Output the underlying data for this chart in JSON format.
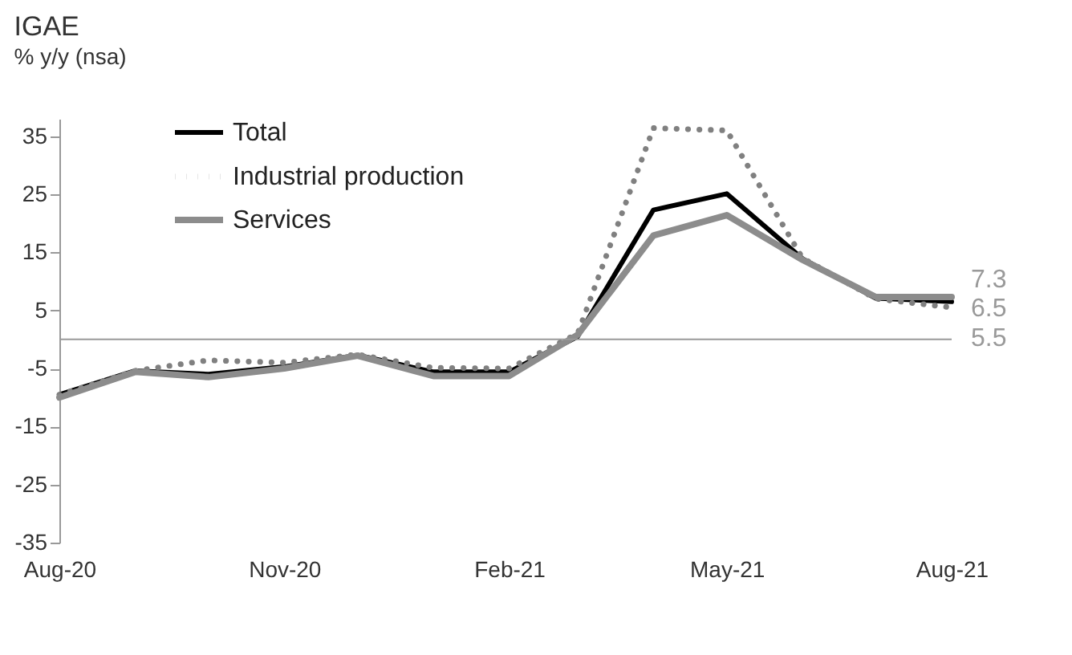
{
  "chart_data": {
    "type": "line",
    "title": "IGAE",
    "subtitle": "% y/y (nsa)",
    "x": [
      "2020-08",
      "2020-09",
      "2020-10",
      "2020-11",
      "2020-12",
      "2021-01",
      "2021-02",
      "2021-03",
      "2021-04",
      "2021-05",
      "2021-06",
      "2021-07",
      "2021-08"
    ],
    "series": [
      {
        "name": "Total",
        "color": "#000000",
        "line_style": "solid",
        "values": [
          -9.5,
          -5.4,
          -6.0,
          -4.7,
          -2.7,
          -5.6,
          -5.6,
          0.5,
          22.3,
          25.1,
          13.9,
          7.1,
          6.5
        ]
      },
      {
        "name": "Industrial production",
        "color": "#808080",
        "line_style": "dotted",
        "values": [
          -9.5,
          -5.4,
          -3.6,
          -4.0,
          -2.6,
          -4.9,
          -5.0,
          1.0,
          36.4,
          36.0,
          14.0,
          7.0,
          5.5
        ]
      },
      {
        "name": "Services",
        "color": "#8c8c8c",
        "line_style": "solid",
        "values": [
          -10.0,
          -5.6,
          -6.5,
          -5.0,
          -2.8,
          -6.3,
          -6.3,
          0.8,
          17.9,
          21.4,
          13.7,
          7.3,
          7.3
        ]
      }
    ],
    "ylim": [
      -35,
      38
    ],
    "yticks": [
      -35,
      -25,
      -15,
      -5,
      5,
      15,
      25,
      35
    ],
    "xlim": [
      "2020-08",
      "2021-08"
    ],
    "xticks": [
      {
        "value": "2020-08",
        "label": "Aug-20"
      },
      {
        "value": "2020-11",
        "label": "Nov-20"
      },
      {
        "value": "2021-02",
        "label": "Feb-21"
      },
      {
        "value": "2021-05",
        "label": "May-21"
      },
      {
        "value": "2021-08",
        "label": "Aug-21"
      }
    ],
    "annotations": [
      {
        "text": "7.3",
        "x": "2021-08",
        "y": 7.3
      },
      {
        "text": "6.5",
        "x": "2021-08",
        "y": 6.5
      },
      {
        "text": "5.5",
        "x": "2021-08",
        "y": 5.5
      }
    ],
    "legend": "top left",
    "grid": false
  }
}
